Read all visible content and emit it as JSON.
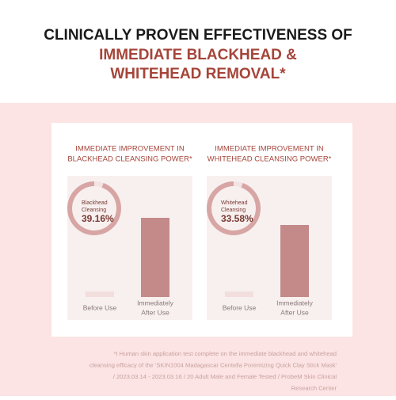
{
  "header": {
    "title": "CLINICALLY PROVEN EFFECTIVENESS OF",
    "subtitle_lines": [
      "IMMEDIATE BLACKHEAD &",
      "WHITEHEAD REMOVAL*"
    ]
  },
  "chart_data": [
    {
      "type": "bar",
      "title_lines": [
        "IMMEDIATE IMPROVEMENT IN",
        "BLACKHEAD CLEANSING POWER*"
      ],
      "gauge_lines": [
        "Blackhead",
        "Cleansing"
      ],
      "gauge_text": "39.16%",
      "categories": [
        [
          "Before Use"
        ],
        [
          "Immediately",
          "After Use"
        ]
      ],
      "values": [
        7,
        100
      ],
      "colors": [
        "#f2dedd",
        "#c48a8a"
      ]
    },
    {
      "type": "bar",
      "title_lines": [
        "IMMEDIATE IMPROVEMENT IN",
        "WHITEHEAD CLEANSING POWER*"
      ],
      "gauge_lines": [
        "Whitehead",
        "Cleansing"
      ],
      "gauge_text": "33.58%",
      "categories": [
        [
          "Before Use"
        ],
        [
          "Immediately",
          "After Use"
        ]
      ],
      "values": [
        7,
        91
      ],
      "colors": [
        "#f2dedd",
        "#c48a8a"
      ]
    }
  ],
  "footnote": [
    "*I Human skin application test complete on the immediate blackhead and whitehead",
    "cleansing efficacy of the 'SKIN1004 Madagascar Centella Poremizing Quick Clay Stick Mask'",
    "/ 2023.03.14 - 2023.03.16 / 20 Adult Male and Female Tested / ProbeM Skin Clinical",
    "Research Center"
  ]
}
